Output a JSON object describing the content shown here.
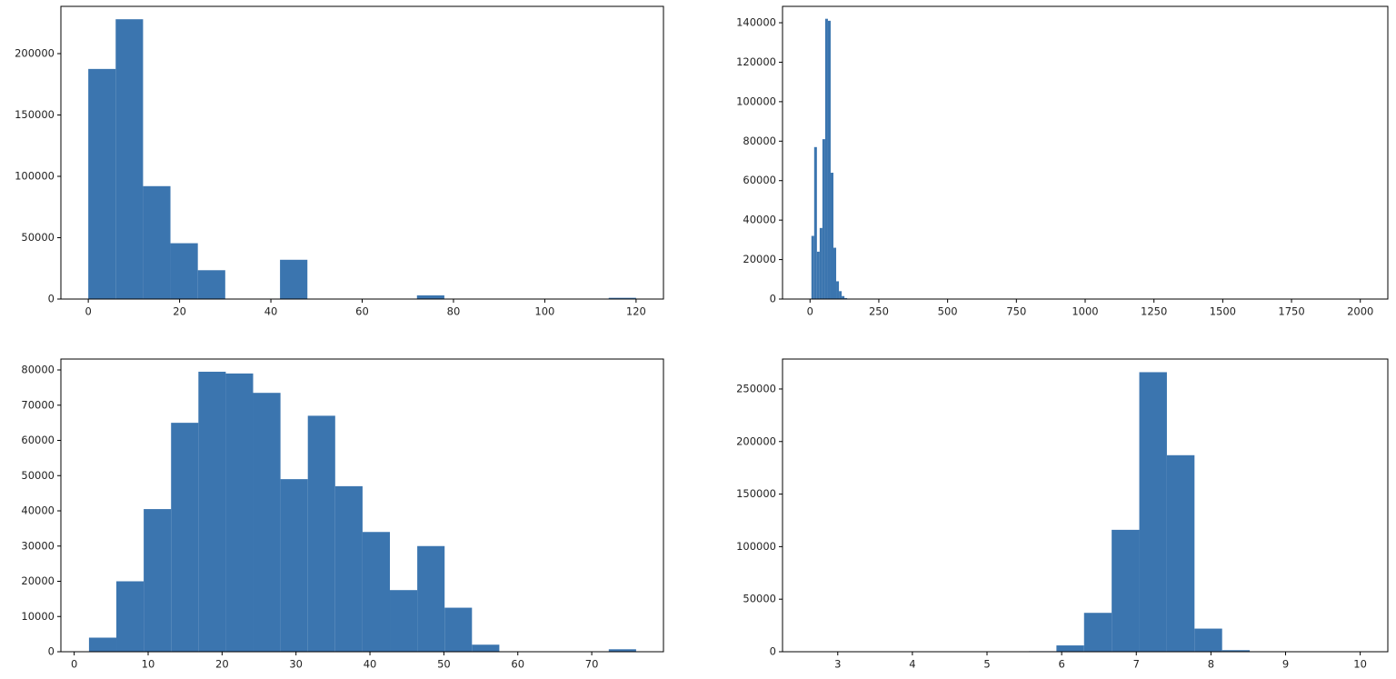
{
  "chart_data": [
    {
      "type": "histogram",
      "color": "#3b75af",
      "bins": [
        0,
        6,
        12,
        18,
        24,
        30,
        36,
        42,
        48,
        54,
        60,
        66,
        72,
        78,
        84,
        90,
        96,
        102,
        108,
        114,
        120
      ],
      "values": [
        187500,
        228000,
        92000,
        45500,
        23500,
        0,
        0,
        32000,
        0,
        0,
        0,
        0,
        3000,
        0,
        0,
        0,
        0,
        0,
        0,
        1000
      ],
      "xlim": [
        -6,
        126
      ],
      "ylim": [
        0,
        238500
      ],
      "xticks": [
        0,
        20,
        40,
        60,
        80,
        100,
        120
      ],
      "yticks": [
        0,
        50000,
        100000,
        150000,
        200000
      ]
    },
    {
      "type": "histogram",
      "color": "#3b75af",
      "bins": [
        5,
        15,
        25,
        35,
        45,
        55,
        65,
        75,
        85,
        95,
        105,
        115,
        125,
        135,
        145
      ],
      "values": [
        32000,
        77000,
        24000,
        36000,
        81000,
        142000,
        141000,
        64000,
        26000,
        9000,
        4000,
        1500,
        500,
        200
      ],
      "xlim": [
        -100,
        2100
      ],
      "ylim": [
        0,
        148300
      ],
      "xticks": [
        0,
        250,
        500,
        750,
        1000,
        1250,
        1500,
        1750,
        2000
      ],
      "yticks": [
        0,
        20000,
        40000,
        60000,
        80000,
        100000,
        120000,
        140000
      ]
    },
    {
      "type": "histogram",
      "color": "#3b75af",
      "bins": [
        2,
        5.7,
        9.4,
        13.1,
        16.8,
        20.5,
        24.2,
        27.9,
        31.6,
        35.3,
        39,
        42.7,
        46.4,
        50.1,
        53.8,
        57.5,
        61.2,
        64.9,
        68.6,
        72.3,
        76
      ],
      "values": [
        4000,
        20000,
        40500,
        65000,
        79500,
        79000,
        73500,
        49000,
        67000,
        47000,
        34000,
        17500,
        30000,
        12500,
        2000,
        0,
        0,
        0,
        0,
        700
      ],
      "xlim": [
        -1.8,
        79.7
      ],
      "ylim": [
        0,
        83100
      ],
      "xticks": [
        0,
        10,
        20,
        30,
        40,
        50,
        60,
        70
      ],
      "yticks": [
        0,
        10000,
        20000,
        30000,
        40000,
        50000,
        60000,
        70000,
        80000
      ]
    },
    {
      "type": "histogram",
      "color": "#3b75af",
      "bins": [
        2.6,
        2.97,
        3.34,
        3.71,
        4.08,
        4.45,
        4.82,
        5.19,
        5.56,
        5.93,
        6.3,
        6.67,
        7.04,
        7.41,
        7.78,
        8.15,
        8.52,
        8.89,
        9.26,
        9.63,
        10.0
      ],
      "values": [
        0,
        0,
        0,
        0,
        0,
        0,
        0,
        0,
        500,
        6000,
        37000,
        116000,
        266000,
        187000,
        22000,
        1500,
        0,
        0,
        0,
        0
      ],
      "xlim": [
        2.26,
        10.37
      ],
      "ylim": [
        0,
        278500
      ],
      "xticks": [
        3,
        4,
        5,
        6,
        7,
        8,
        9,
        10
      ],
      "yticks": [
        0,
        50000,
        100000,
        150000,
        200000,
        250000
      ]
    }
  ]
}
